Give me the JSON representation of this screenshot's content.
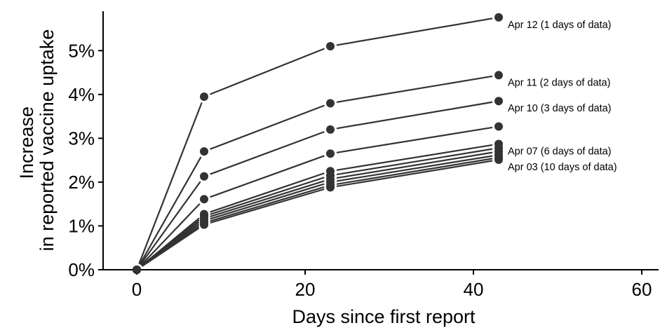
{
  "chart_data": {
    "type": "line",
    "title": "",
    "xlabel": "Days since first report",
    "ylabel": [
      "Increase",
      "in reported vaccine uptake"
    ],
    "xlim": [
      -4,
      62
    ],
    "ylim": [
      0,
      0.059
    ],
    "xticks": [
      0,
      20,
      40,
      60
    ],
    "yticks": [
      0,
      0.01,
      0.02,
      0.03,
      0.04,
      0.05
    ],
    "ytick_labels": [
      "0%",
      "1%",
      "2%",
      "3%",
      "4%",
      "5%"
    ],
    "grid": false,
    "legend": "none",
    "x": [
      0,
      8,
      23,
      43
    ],
    "series": [
      {
        "name": "Apr 12 (1 days of data)",
        "label_shown": true,
        "values": [
          0,
          0.0395,
          0.051,
          0.0576
        ]
      },
      {
        "name": "Apr 11 (2 days of data)",
        "label_shown": true,
        "values": [
          0,
          0.027,
          0.038,
          0.0444
        ]
      },
      {
        "name": "Apr 10 (3 days of data)",
        "label_shown": true,
        "values": [
          0,
          0.0213,
          0.032,
          0.0385
        ]
      },
      {
        "values": [
          0,
          0.0161,
          0.0265,
          0.0327
        ]
      },
      {
        "name": "Apr 07 (6 days of data)",
        "label_shown": true,
        "values": [
          0,
          0.0127,
          0.0225,
          0.0287
        ]
      },
      {
        "values": [
          0,
          0.0122,
          0.0215,
          0.0278
        ]
      },
      {
        "values": [
          0,
          0.0117,
          0.0207,
          0.027
        ]
      },
      {
        "values": [
          0,
          0.0112,
          0.02,
          0.0262
        ]
      },
      {
        "values": [
          0,
          0.0107,
          0.0193,
          0.0256
        ]
      },
      {
        "name": "Apr 03 (10 days of data)",
        "label_shown": true,
        "values": [
          0,
          0.0103,
          0.0188,
          0.0251
        ]
      }
    ],
    "colors": {
      "line": "#333333",
      "marker": "#333333",
      "axis": "#000000"
    }
  }
}
